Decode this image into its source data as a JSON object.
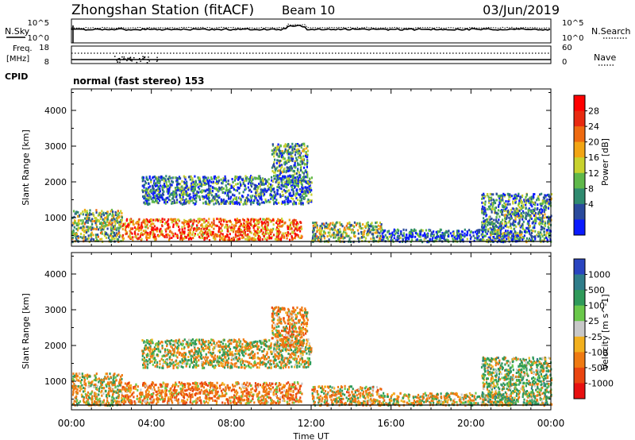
{
  "header": {
    "title": "Zhongshan Station (fitACF)",
    "beam": "Beam 10",
    "date": "03/Jun/2019"
  },
  "nsky": {
    "label": "N.Sky",
    "ticks": [
      "10^5",
      "10^0"
    ],
    "right_ticks": [
      "10^5",
      "10^0"
    ],
    "legend": "N.Search"
  },
  "freq": {
    "label_line1": "Freq.",
    "label_line2": "[MHz]",
    "ticks": [
      "18",
      "8"
    ],
    "right_ticks": [
      "60",
      "0"
    ],
    "legend": "Nave"
  },
  "cpid": {
    "label": "CPID",
    "text": "normal (fast stereo) 153"
  },
  "panels": {
    "ylabel": "Slant Range [km]",
    "yticks": [
      "4000",
      "3000",
      "2000",
      "1000"
    ],
    "xlabel": "Time UT",
    "xticks": [
      "00:00",
      "04:00",
      "08:00",
      "12:00",
      "16:00",
      "20:00",
      "00:00"
    ]
  },
  "chart_data": [
    {
      "type": "heatmap",
      "quantity": "Power",
      "xlabel": "Time UT",
      "ylabel": "Slant Range [km]",
      "xlim": [
        0,
        24
      ],
      "ylim": [
        200,
        4600
      ],
      "colorbar": {
        "label": "Power [dB]",
        "ticks": [
          "28",
          "24",
          "20",
          "16",
          "12",
          "8",
          "4"
        ],
        "colors": [
          "#0a1aff",
          "#2a4a9c",
          "#2f8a6f",
          "#5fb84a",
          "#c8d22e",
          "#f2a514",
          "#ee6a10",
          "#e82a10",
          "#ff0000"
        ]
      },
      "regions": [
        {
          "t": [
            0.0,
            2.5
          ],
          "r": [
            350,
            1250
          ],
          "value": 14
        },
        {
          "t": [
            2.5,
            11.5
          ],
          "r": [
            400,
            1000
          ],
          "value": 25
        },
        {
          "t": [
            3.5,
            12.0
          ],
          "r": [
            1400,
            2200
          ],
          "value": 8
        },
        {
          "t": [
            10.0,
            11.8
          ],
          "r": [
            2000,
            3100
          ],
          "value": 10
        },
        {
          "t": [
            12.0,
            15.5
          ],
          "r": [
            350,
            900
          ],
          "value": 14
        },
        {
          "t": [
            15.5,
            22.0
          ],
          "r": [
            350,
            700
          ],
          "value": 6
        },
        {
          "t": [
            20.5,
            24.0
          ],
          "r": [
            350,
            1700
          ],
          "value": 10
        }
      ]
    },
    {
      "type": "heatmap",
      "quantity": "Velocity",
      "xlabel": "Time UT",
      "ylabel": "Slant Range [km]",
      "xlim": [
        0,
        24
      ],
      "ylim": [
        200,
        4600
      ],
      "colorbar": {
        "label": "Velocity [m s^-1]",
        "ticks": [
          "1000",
          "500",
          "100",
          "25",
          "-25",
          "-100",
          "-500",
          "-1000"
        ],
        "colors": [
          "#2a45c0",
          "#2f7d8a",
          "#2f9a5a",
          "#6ac84a",
          "#c8c8c8",
          "#f2b01e",
          "#ef7a12",
          "#ea4510",
          "#e81010"
        ]
      },
      "regions": [
        {
          "t": [
            0.0,
            2.5
          ],
          "r": [
            350,
            1250
          ],
          "value": -100
        },
        {
          "t": [
            2.5,
            11.5
          ],
          "r": [
            400,
            1000
          ],
          "value": -300
        },
        {
          "t": [
            3.5,
            12.0
          ],
          "r": [
            1400,
            2200
          ],
          "value": 0
        },
        {
          "t": [
            10.0,
            11.8
          ],
          "r": [
            2000,
            3100
          ],
          "value": -200
        },
        {
          "t": [
            12.0,
            15.5
          ],
          "r": [
            350,
            900
          ],
          "value": -150
        },
        {
          "t": [
            15.5,
            22.0
          ],
          "r": [
            350,
            700
          ],
          "value": -80
        },
        {
          "t": [
            20.5,
            24.0
          ],
          "r": [
            350,
            1700
          ],
          "value": 150
        }
      ]
    }
  ]
}
